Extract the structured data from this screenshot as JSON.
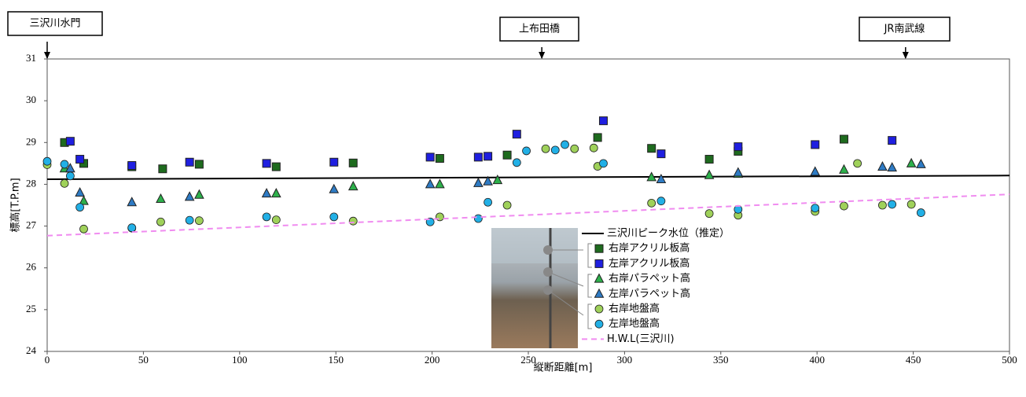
{
  "chart_data": {
    "type": "scatter",
    "annotations": [
      "三沢川水門",
      "上布田橋",
      "JR南武線"
    ],
    "xlabel": "縦断距離[m]",
    "ylabel": "標高[T.P.m]",
    "xlim": [
      0,
      500
    ],
    "ylim": [
      24,
      31
    ],
    "xticks": [
      0,
      50,
      100,
      150,
      200,
      250,
      300,
      350,
      400,
      450,
      500
    ],
    "yticks": [
      24,
      25,
      26,
      27,
      28,
      29,
      30,
      31
    ],
    "series": [
      {
        "name": "三沢川ピーク水位（推定）",
        "marker": "line",
        "color": "#000000",
        "x": [
          0,
          500
        ],
        "values": [
          28.12,
          28.21
        ]
      },
      {
        "name": "右岸アクリル板高",
        "marker": "square",
        "color": "#1e6b1e",
        "x": [
          9,
          19,
          44,
          60,
          79,
          119,
          159,
          204,
          239,
          286,
          314,
          344,
          359,
          414
        ],
        "values": [
          29.0,
          28.5,
          28.42,
          28.37,
          28.48,
          28.42,
          28.51,
          28.62,
          28.7,
          29.12,
          28.86,
          28.6,
          28.79,
          29.08
        ]
      },
      {
        "name": "左岸アクリル板高",
        "marker": "square",
        "color": "#1f1fe0",
        "x": [
          12,
          17,
          44,
          74,
          114,
          149,
          199,
          224,
          229,
          244,
          289,
          319,
          359,
          399,
          439
        ],
        "values": [
          29.03,
          28.6,
          28.45,
          28.53,
          28.5,
          28.53,
          28.65,
          28.65,
          28.67,
          29.2,
          29.52,
          28.73,
          28.9,
          28.95,
          29.05
        ]
      },
      {
        "name": "右岸パラペット高",
        "marker": "triangle",
        "color": "#2db04b",
        "x": [
          9,
          19,
          59,
          79,
          119,
          159,
          204,
          234,
          314,
          344,
          359,
          414,
          449
        ],
        "values": [
          28.38,
          27.6,
          27.65,
          27.75,
          27.78,
          27.95,
          28.0,
          28.1,
          28.17,
          28.22,
          28.25,
          28.35,
          28.5
        ]
      },
      {
        "name": "左岸パラペット高",
        "marker": "triangle",
        "color": "#2e7bc4",
        "x": [
          12,
          17,
          44,
          74,
          114,
          149,
          199,
          224,
          229,
          319,
          359,
          399,
          434,
          439,
          454
        ],
        "values": [
          28.38,
          27.8,
          27.57,
          27.7,
          27.78,
          27.88,
          28.0,
          28.03,
          28.07,
          28.12,
          28.28,
          28.3,
          28.42,
          28.4,
          28.48
        ]
      },
      {
        "name": "右岸地盤高",
        "marker": "circle",
        "color": "#9fd15a",
        "x": [
          0,
          9,
          19,
          44,
          59,
          79,
          119,
          159,
          204,
          239,
          259,
          274,
          284,
          286,
          314,
          344,
          359,
          399,
          414,
          421,
          434,
          449
        ],
        "values": [
          28.47,
          28.02,
          26.93,
          26.95,
          27.1,
          27.13,
          27.15,
          27.12,
          27.22,
          27.5,
          28.85,
          28.85,
          28.87,
          28.43,
          27.55,
          27.3,
          27.26,
          27.35,
          27.48,
          28.5,
          27.5,
          27.52
        ]
      },
      {
        "name": "左岸地盤高",
        "marker": "circle",
        "color": "#22b0e6",
        "x": [
          0,
          9,
          12,
          17,
          44,
          74,
          114,
          149,
          199,
          224,
          229,
          244,
          249,
          264,
          269,
          289,
          319,
          359,
          399,
          439,
          454
        ],
        "values": [
          28.55,
          28.48,
          28.2,
          27.45,
          26.96,
          27.14,
          27.22,
          27.22,
          27.1,
          27.18,
          27.57,
          28.52,
          28.8,
          28.82,
          28.95,
          28.5,
          27.6,
          27.4,
          27.43,
          27.52,
          27.32
        ]
      },
      {
        "name": "H.W.L(三沢川)",
        "marker": "dashed",
        "color": "#f08cf0",
        "x": [
          0,
          500
        ],
        "values": [
          26.77,
          27.76
        ]
      }
    ]
  }
}
